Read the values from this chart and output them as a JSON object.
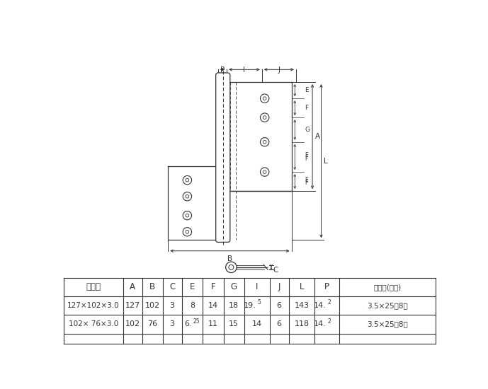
{
  "bg_color": "#ffffff",
  "line_color": "#333333",
  "figure_width": 6.89,
  "figure_height": 5.5,
  "table_headers": [
    "サイズ",
    "A",
    "B",
    "C",
    "E",
    "F",
    "G",
    "I",
    "J",
    "L",
    "P",
    "木ネジ(本数)"
  ],
  "table_row1": [
    "127×102×3.0",
    "127",
    "102",
    "3",
    "8",
    "14",
    "18",
    "19.",
    "6",
    "143",
    "14.",
    "3.5×25（8）"
  ],
  "table_row1_super": [
    "",
    "",
    "",
    "",
    "",
    "",
    "",
    "5",
    "",
    "",
    "2",
    ""
  ],
  "table_row2": [
    "102× 76×3.0",
    "102",
    "76",
    "3",
    "6.",
    "11",
    "15",
    "14",
    "6",
    "118",
    "14.",
    "3.5×25（8）"
  ],
  "table_row2_super": [
    "",
    "",
    "",
    "",
    "25",
    "",
    "",
    "",
    "",
    "",
    "2",
    ""
  ]
}
